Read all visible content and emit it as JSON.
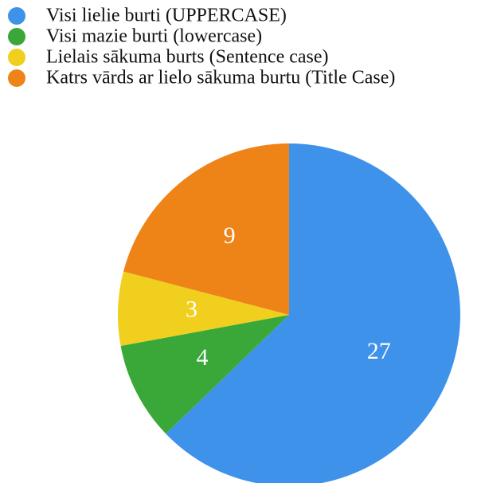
{
  "chart_data": {
    "type": "pie",
    "categories": [
      "Visi lielie burti (UPPERCASE)",
      "Visi mazie burti (lowercase)",
      "Lielais sākuma burts (Sentence case)",
      "Katrs vārds ar lielo sākuma burtu (Title Case)"
    ],
    "values": [
      27,
      4,
      3,
      9
    ],
    "colors": [
      "#3f92ea",
      "#3aa838",
      "#f0cf1f",
      "#ee8318"
    ],
    "legend": "top-left"
  }
}
